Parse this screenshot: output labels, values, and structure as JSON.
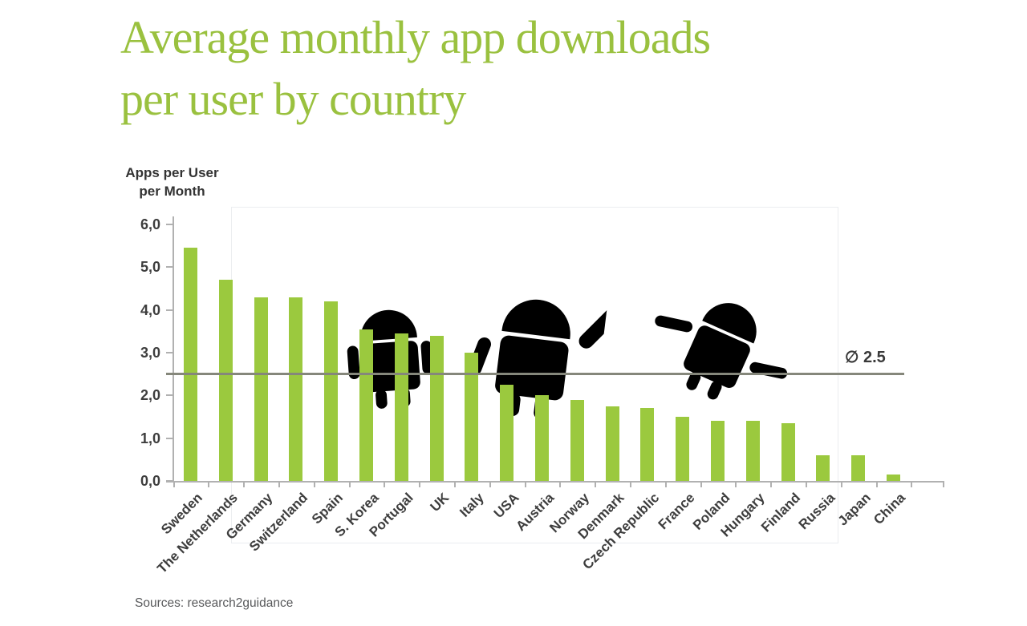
{
  "page": {
    "title_line1": "Average monthly app downloads",
    "title_line2": "per user by country",
    "source_note": "Sources: research2guidance"
  },
  "colors": {
    "title_green": "#9ac13f",
    "bar_green": "#9bc93e",
    "watermark_green": "#dfe9ba",
    "watermark_border": "#ebedf0",
    "axis_gray": "#b1b1b1",
    "label_dark": "#3d3d3d",
    "average_line_gray": "#85877b",
    "source_gray": "#58595b"
  },
  "chart_data": {
    "type": "bar",
    "title": "Average monthly app downloads per user by country",
    "ylabel_line1": "Apps per User",
    "ylabel_line2": "per Month",
    "xlabel": "",
    "ylim": [
      0,
      6
    ],
    "ytick_step": 1,
    "ytick_labels": [
      "0,0",
      "1,0",
      "2,0",
      "3,0",
      "4,0",
      "5,0",
      "6,0"
    ],
    "grid": false,
    "legend": false,
    "decimal_separator": ",",
    "categories": [
      "Sweden",
      "The Netherlands",
      "Germany",
      "Switzerland",
      "Spain",
      "S. Korea",
      "Portugal",
      "UK",
      "Italy",
      "USA",
      "Austria",
      "Norway",
      "Denmark",
      "Czech Republic",
      "France",
      "Poland",
      "Hungary",
      "Finland",
      "Russia",
      "Japan",
      "China"
    ],
    "values": [
      5.45,
      4.7,
      4.3,
      4.3,
      4.2,
      3.55,
      3.45,
      3.4,
      3.0,
      2.25,
      2.0,
      1.9,
      1.75,
      1.7,
      1.5,
      1.4,
      1.4,
      1.35,
      0.6,
      0.6,
      0.15
    ],
    "average_line": {
      "value": 2.5,
      "label": "∅ 2.5"
    },
    "watermark": "android-robots"
  }
}
